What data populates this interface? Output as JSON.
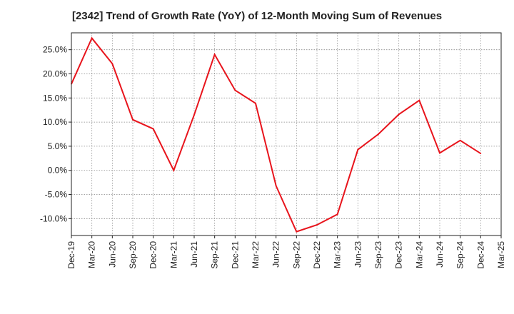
{
  "chart_data": {
    "type": "line",
    "title": "[2342]  Trend of Growth Rate (YoY) of 12-Month Moving Sum of Revenues",
    "xlabel": "",
    "ylabel": "",
    "x": [
      "Dec-19",
      "Mar-20",
      "Jun-20",
      "Sep-20",
      "Dec-20",
      "Mar-21",
      "Jun-21",
      "Sep-21",
      "Dec-21",
      "Mar-22",
      "Jun-22",
      "Sep-22",
      "Dec-22",
      "Mar-23",
      "Jun-23",
      "Sep-23",
      "Dec-23",
      "Mar-24",
      "Jun-24",
      "Sep-24",
      "Dec-24",
      "Mar-25"
    ],
    "y_tick_labels": [
      "25.0%",
      "20.0%",
      "15.0%",
      "10.0%",
      "5.0%",
      "0.0%",
      "-5.0%",
      "-10.0%"
    ],
    "y_ticks": [
      25,
      20,
      15,
      10,
      5,
      0,
      -5,
      -10
    ],
    "ylim": [
      -13.5,
      28.5
    ],
    "grid": true,
    "series": [
      {
        "color": "#e8141c",
        "values": [
          17.9,
          27.4,
          22.1,
          10.5,
          8.6,
          0.0,
          11.5,
          24.0,
          16.6,
          13.9,
          -3.2,
          -12.7,
          -11.3,
          -9.1,
          4.3,
          7.5,
          11.6,
          14.5,
          3.6,
          6.2,
          3.5,
          null
        ]
      }
    ]
  }
}
